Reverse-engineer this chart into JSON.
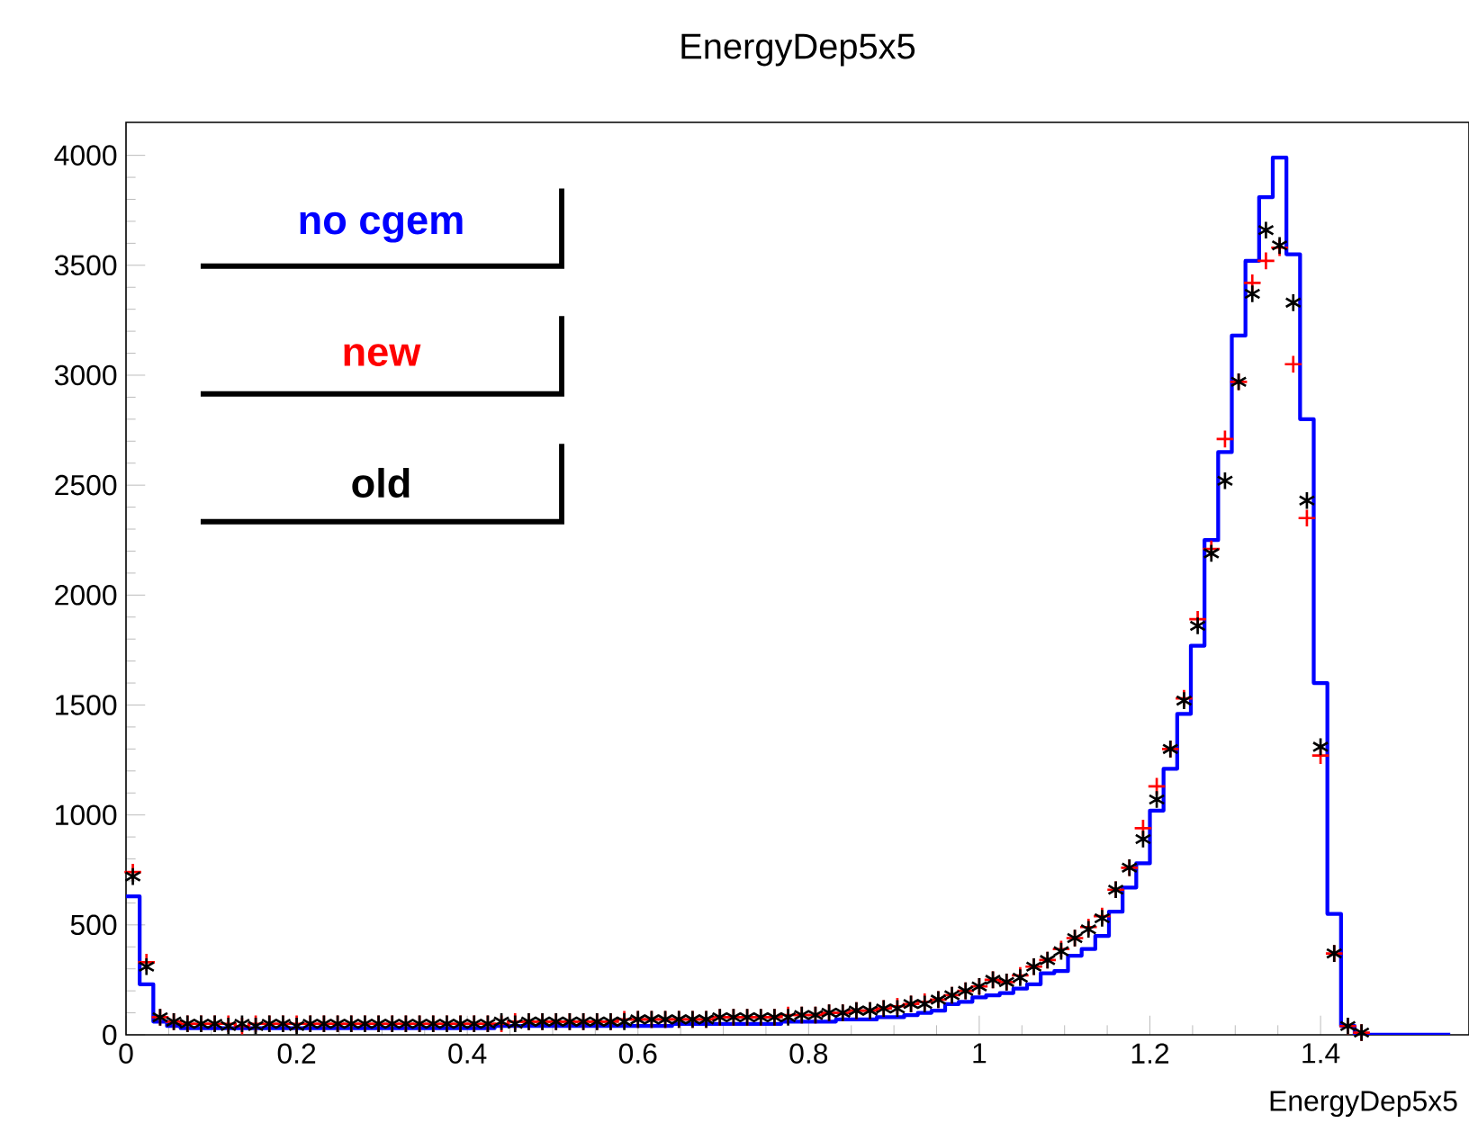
{
  "chart_data": {
    "type": "step",
    "title": "EnergyDep5x5",
    "xlabel": "EnergyDep5x5",
    "series": [
      {
        "name": "no cgem",
        "color": "#0000ff",
        "x": [
          0,
          0.016,
          0.032,
          0.048,
          0.064,
          0.08,
          0.096,
          0.112,
          0.128,
          0.144,
          0.16,
          0.176,
          0.192,
          0.208,
          0.224,
          0.24,
          0.256,
          0.272,
          0.288,
          0.304,
          0.32,
          0.336,
          0.352,
          0.368,
          0.384,
          0.4,
          0.416,
          0.432,
          0.448,
          0.464,
          0.48,
          0.496,
          0.512,
          0.528,
          0.544,
          0.56,
          0.576,
          0.592,
          0.608,
          0.624,
          0.64,
          0.656,
          0.672,
          0.688,
          0.704,
          0.72,
          0.736,
          0.752,
          0.768,
          0.784,
          0.8,
          0.816,
          0.832,
          0.848,
          0.864,
          0.88,
          0.896,
          0.912,
          0.928,
          0.944,
          0.96,
          0.976,
          0.992,
          1.008,
          1.024,
          1.04,
          1.056,
          1.072,
          1.088,
          1.104,
          1.12,
          1.136,
          1.152,
          1.168,
          1.184,
          1.2,
          1.216,
          1.232,
          1.248,
          1.264,
          1.28,
          1.296,
          1.312,
          1.328,
          1.344,
          1.36,
          1.376,
          1.392,
          1.408,
          1.424,
          1.44,
          1.456,
          1.472,
          1.488,
          1.504,
          1.52,
          1.536,
          1.552
        ],
        "values": [
          630,
          230,
          60,
          40,
          30,
          30,
          30,
          30,
          30,
          30,
          30,
          30,
          30,
          30,
          30,
          30,
          30,
          30,
          30,
          30,
          30,
          30,
          30,
          30,
          30,
          30,
          30,
          40,
          40,
          40,
          40,
          40,
          40,
          40,
          40,
          40,
          40,
          40,
          40,
          40,
          50,
          50,
          50,
          50,
          50,
          50,
          50,
          50,
          60,
          60,
          60,
          60,
          70,
          70,
          70,
          80,
          80,
          90,
          100,
          110,
          140,
          150,
          170,
          180,
          190,
          210,
          230,
          280,
          290,
          360,
          390,
          450,
          560,
          670,
          780,
          1020,
          1210,
          1460,
          1770,
          2250,
          2650,
          3180,
          3520,
          3810,
          3990,
          3550,
          2800,
          1600,
          550,
          40,
          0,
          0,
          0,
          0,
          0,
          0,
          0,
          0
        ]
      },
      {
        "name": "new",
        "type": "scatter",
        "marker": "cross",
        "color": "#ff0000",
        "x": [
          0.008,
          0.024,
          0.04,
          0.056,
          0.072,
          0.088,
          0.104,
          0.12,
          0.136,
          0.152,
          0.168,
          0.184,
          0.2,
          0.216,
          0.232,
          0.248,
          0.264,
          0.28,
          0.296,
          0.312,
          0.328,
          0.344,
          0.36,
          0.376,
          0.392,
          0.408,
          0.424,
          0.44,
          0.456,
          0.472,
          0.488,
          0.504,
          0.52,
          0.536,
          0.552,
          0.568,
          0.584,
          0.6,
          0.616,
          0.632,
          0.648,
          0.664,
          0.68,
          0.696,
          0.712,
          0.728,
          0.744,
          0.76,
          0.776,
          0.792,
          0.808,
          0.824,
          0.84,
          0.856,
          0.872,
          0.888,
          0.904,
          0.92,
          0.936,
          0.952,
          0.968,
          0.984,
          1,
          1.016,
          1.032,
          1.048,
          1.064,
          1.08,
          1.096,
          1.112,
          1.128,
          1.144,
          1.16,
          1.176,
          1.192,
          1.208,
          1.224,
          1.24,
          1.256,
          1.272,
          1.288,
          1.304,
          1.32,
          1.336,
          1.352,
          1.368,
          1.384,
          1.4,
          1.416,
          1.432,
          1.448
        ],
        "values": [
          740,
          330,
          80,
          60,
          50,
          50,
          50,
          50,
          40,
          50,
          50,
          50,
          50,
          50,
          50,
          50,
          50,
          50,
          50,
          50,
          50,
          50,
          50,
          50,
          50,
          50,
          50,
          50,
          60,
          60,
          60,
          60,
          60,
          60,
          60,
          60,
          70,
          70,
          70,
          70,
          70,
          70,
          70,
          80,
          80,
          80,
          80,
          80,
          90,
          90,
          90,
          100,
          100,
          110,
          110,
          120,
          130,
          140,
          150,
          160,
          180,
          200,
          220,
          250,
          240,
          270,
          310,
          340,
          390,
          440,
          490,
          540,
          660,
          760,
          940,
          1130,
          1300,
          1530,
          1890,
          2210,
          2710,
          2970,
          3420,
          3520,
          3580,
          3050,
          2350,
          1270,
          370,
          40,
          10
        ]
      },
      {
        "name": "old",
        "type": "scatter",
        "color": "#000000",
        "x": [
          0.008,
          0.024,
          0.04,
          0.056,
          0.072,
          0.088,
          0.104,
          0.12,
          0.136,
          0.152,
          0.168,
          0.184,
          0.2,
          0.216,
          0.232,
          0.248,
          0.264,
          0.28,
          0.296,
          0.312,
          0.328,
          0.344,
          0.36,
          0.376,
          0.392,
          0.408,
          0.424,
          0.44,
          0.456,
          0.472,
          0.488,
          0.504,
          0.52,
          0.536,
          0.552,
          0.568,
          0.584,
          0.6,
          0.616,
          0.632,
          0.648,
          0.664,
          0.68,
          0.696,
          0.712,
          0.728,
          0.744,
          0.76,
          0.776,
          0.792,
          0.808,
          0.824,
          0.84,
          0.856,
          0.872,
          0.888,
          0.904,
          0.92,
          0.936,
          0.952,
          0.968,
          0.984,
          1,
          1.016,
          1.032,
          1.048,
          1.064,
          1.08,
          1.096,
          1.112,
          1.128,
          1.144,
          1.16,
          1.176,
          1.192,
          1.208,
          1.224,
          1.24,
          1.256,
          1.272,
          1.288,
          1.304,
          1.32,
          1.336,
          1.352,
          1.368,
          1.384,
          1.4,
          1.416,
          1.432,
          1.448
        ],
        "values": [
          720,
          310,
          80,
          60,
          50,
          50,
          50,
          40,
          50,
          40,
          50,
          50,
          40,
          50,
          50,
          50,
          50,
          50,
          50,
          50,
          50,
          50,
          50,
          50,
          50,
          50,
          50,
          60,
          50,
          60,
          60,
          60,
          60,
          60,
          60,
          60,
          60,
          70,
          70,
          70,
          70,
          70,
          70,
          80,
          80,
          80,
          80,
          80,
          80,
          90,
          90,
          100,
          100,
          110,
          110,
          120,
          120,
          140,
          140,
          160,
          180,
          200,
          220,
          250,
          240,
          260,
          310,
          340,
          380,
          440,
          480,
          530,
          660,
          760,
          890,
          1070,
          1300,
          1520,
          1860,
          2190,
          2520,
          2970,
          3370,
          3660,
          3590,
          3330,
          2430,
          1310,
          370,
          40,
          10
        ]
      }
    ],
    "xlim": [
      0,
      1.574
    ],
    "ylim": [
      0,
      4150
    ],
    "xticks": [
      0,
      0.2,
      0.4,
      0.6,
      0.8,
      1,
      1.2,
      1.4
    ],
    "yticks": [
      0,
      500,
      1000,
      1500,
      2000,
      2500,
      3000,
      3500,
      4000
    ]
  }
}
